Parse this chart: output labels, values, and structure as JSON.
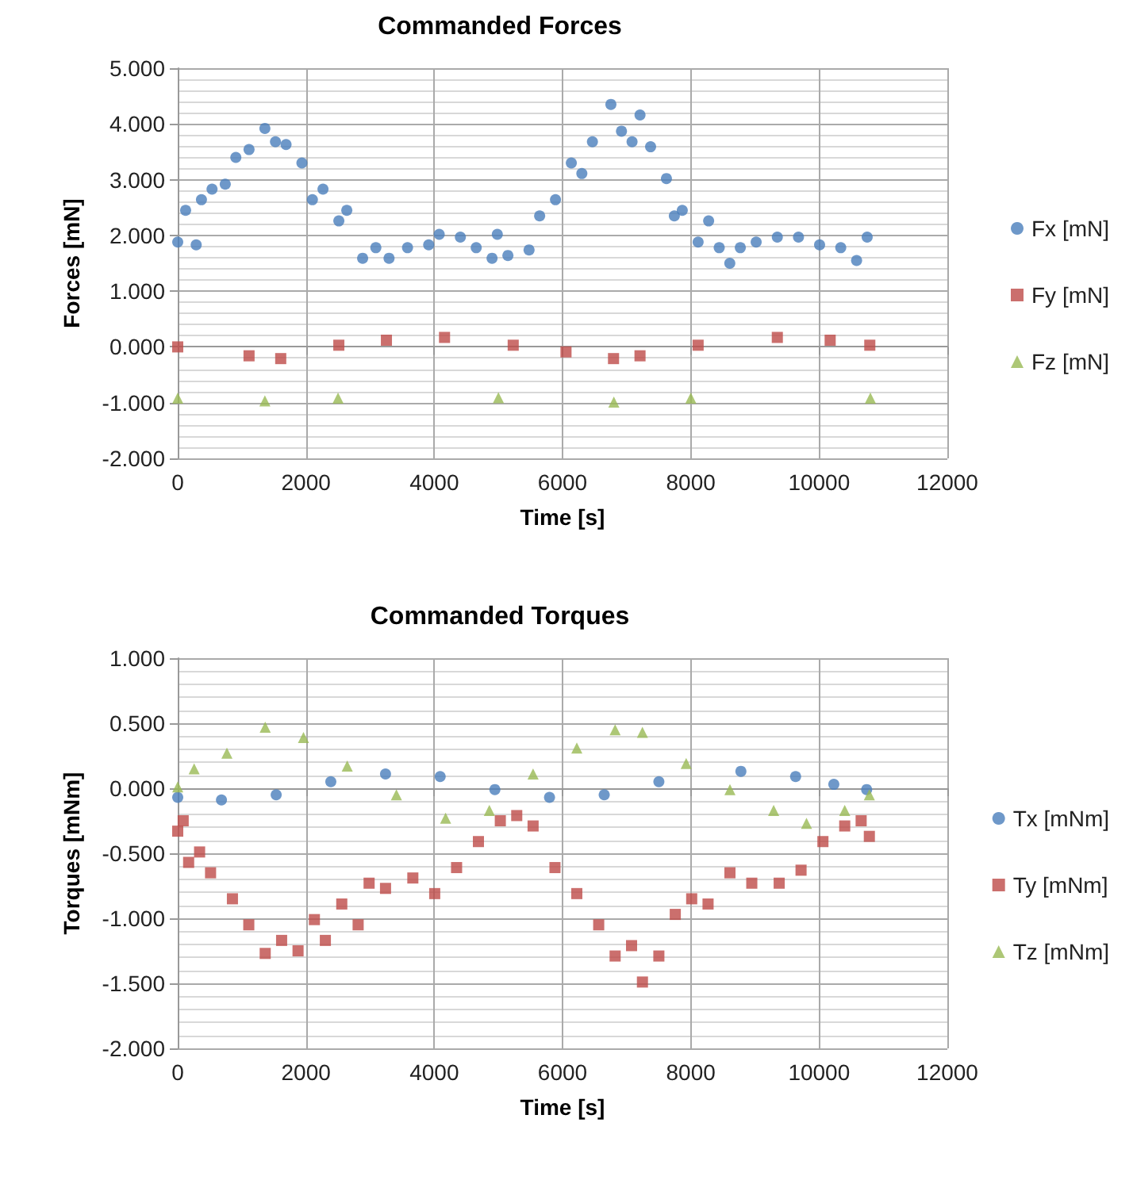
{
  "chart_data": [
    {
      "type": "scatter",
      "title": "Commanded Forces",
      "xlabel": "Time [s]",
      "ylabel": "Forces [mN]",
      "xlim": [
        0,
        12000
      ],
      "xticks": [
        0,
        2000,
        4000,
        6000,
        8000,
        10000,
        12000
      ],
      "ylim": [
        -2,
        5
      ],
      "yticks": [
        {
          "value": -2,
          "label": "-2.000"
        },
        {
          "value": -1,
          "label": "-1.000"
        },
        {
          "value": 0,
          "label": "0.000"
        },
        {
          "value": 1,
          "label": "1.000"
        },
        {
          "value": 2,
          "label": "2.000"
        },
        {
          "value": 3,
          "label": "3.000"
        },
        {
          "value": 4,
          "label": "4.000"
        },
        {
          "value": 5,
          "label": "5.000"
        }
      ],
      "grid": true,
      "legend": "right",
      "series": [
        {
          "name": "Fx [mN]",
          "color": "#4a7ebb",
          "marker": "circle",
          "x": [
            0,
            123,
            288,
            370,
            535,
            741,
            906,
            1112,
            1359,
            1524,
            1689,
            1936,
            2100,
            2265,
            2512,
            2636,
            2883,
            3089,
            3295,
            3583,
            3913,
            4077,
            4407,
            4654,
            4901,
            4983,
            5148,
            5478,
            5643,
            5890,
            6137,
            6301,
            6466,
            6754,
            6919,
            7084,
            7208,
            7373,
            7620,
            7743,
            7867,
            8114,
            8278,
            8443,
            8608,
            8772,
            9019,
            9349,
            9679,
            10008,
            10338,
            10585,
            10750
          ],
          "values": [
            1.88,
            2.45,
            1.83,
            2.64,
            2.83,
            2.92,
            3.4,
            3.54,
            3.92,
            3.68,
            3.63,
            3.3,
            2.64,
            2.83,
            2.26,
            2.45,
            1.59,
            1.78,
            1.59,
            1.78,
            1.83,
            2.02,
            1.97,
            1.78,
            1.59,
            2.02,
            1.64,
            1.74,
            2.35,
            2.64,
            3.3,
            3.11,
            3.68,
            4.35,
            3.87,
            3.68,
            4.16,
            3.59,
            3.02,
            2.35,
            2.45,
            1.88,
            2.26,
            1.78,
            1.5,
            1.78,
            1.88,
            1.97,
            1.97,
            1.83,
            1.78,
            1.55,
            1.97
          ]
        },
        {
          "name": "Fy [mN]",
          "color": "#be4b48",
          "marker": "square",
          "x": [
            0,
            1112,
            1606,
            2512,
            3254,
            4160,
            5231,
            6054,
            6795,
            7208,
            8114,
            9349,
            10173,
            10791
          ],
          "values": [
            0,
            -0.16,
            -0.21,
            0.03,
            0.12,
            0.17,
            0.03,
            -0.09,
            -0.21,
            -0.16,
            0.03,
            0.17,
            0.12,
            0.03
          ]
        },
        {
          "name": "Fz [mN]",
          "color": "#98b954",
          "marker": "triangle",
          "x": [
            0,
            1359,
            2500,
            5000,
            6800,
            8000,
            10800
          ],
          "values": [
            -0.92,
            -0.97,
            -0.92,
            -0.91,
            -0.99,
            -0.92,
            -0.92
          ]
        }
      ]
    },
    {
      "type": "scatter",
      "title": "Commanded Torques",
      "xlabel": "Time [s]",
      "ylabel": "Torques [mNm]",
      "xlim": [
        0,
        12000
      ],
      "xticks": [
        0,
        2000,
        4000,
        6000,
        8000,
        10000,
        12000
      ],
      "ylim": [
        -2,
        1
      ],
      "yticks": [
        {
          "value": -2,
          "label": "-2.000"
        },
        {
          "value": -1.5,
          "label": "-1.500"
        },
        {
          "value": -1,
          "label": "-1.000"
        },
        {
          "value": -0.5,
          "label": "-0.500"
        },
        {
          "value": 0,
          "label": "0.000"
        },
        {
          "value": 0.5,
          "label": "0.500"
        },
        {
          "value": 1,
          "label": "1.000"
        }
      ],
      "grid": true,
      "legend": "right",
      "series": [
        {
          "name": "Tx [mNm]",
          "color": "#4a7ebb",
          "marker": "circle",
          "x": [
            0,
            682,
            1535,
            2387,
            3240,
            4092,
            4945,
            5797,
            6650,
            7502,
            8781,
            9634,
            10230,
            10742
          ],
          "values": [
            -0.07,
            -0.09,
            -0.05,
            0.05,
            0.11,
            0.09,
            -0.01,
            -0.07,
            -0.05,
            0.05,
            0.13,
            0.09,
            0.03,
            -0.01
          ]
        },
        {
          "name": "Ty [mNm]",
          "color": "#be4b48",
          "marker": "square",
          "x": [
            0,
            85,
            170,
            341,
            512,
            853,
            1108,
            1364,
            1620,
            1876,
            2131,
            2302,
            2558,
            2813,
            2984,
            3240,
            3666,
            4007,
            4348,
            4689,
            5030,
            5286,
            5541,
            5882,
            6223,
            6564,
            6820,
            7076,
            7246,
            7502,
            7758,
            8014,
            8269,
            8610,
            8951,
            9378,
            9719,
            10060,
            10400,
            10656,
            10784
          ],
          "values": [
            -0.33,
            -0.25,
            -0.57,
            -0.49,
            -0.65,
            -0.85,
            -1.05,
            -1.27,
            -1.17,
            -1.25,
            -1.01,
            -1.17,
            -0.89,
            -1.05,
            -0.73,
            -0.77,
            -0.69,
            -0.81,
            -0.61,
            -0.41,
            -0.25,
            -0.21,
            -0.29,
            -0.61,
            -0.81,
            -1.05,
            -1.29,
            -1.21,
            -1.49,
            -1.29,
            -0.97,
            -0.85,
            -0.89,
            -0.65,
            -0.73,
            -0.73,
            -0.63,
            -0.41,
            -0.29,
            -0.25,
            -0.37
          ]
        },
        {
          "name": "Tz [mNm]",
          "color": "#98b954",
          "marker": "triangle",
          "x": [
            0,
            256,
            767,
            1364,
            1961,
            2643,
            3410,
            4177,
            4859,
            5541,
            6223,
            6820,
            7246,
            7928,
            8610,
            9292,
            9804,
            10400,
            10784
          ],
          "values": [
            0.01,
            0.15,
            0.27,
            0.47,
            0.39,
            0.17,
            -0.05,
            -0.23,
            -0.17,
            0.11,
            0.31,
            0.45,
            0.43,
            0.19,
            -0.01,
            -0.17,
            -0.27,
            -0.17,
            -0.05
          ]
        }
      ]
    }
  ]
}
